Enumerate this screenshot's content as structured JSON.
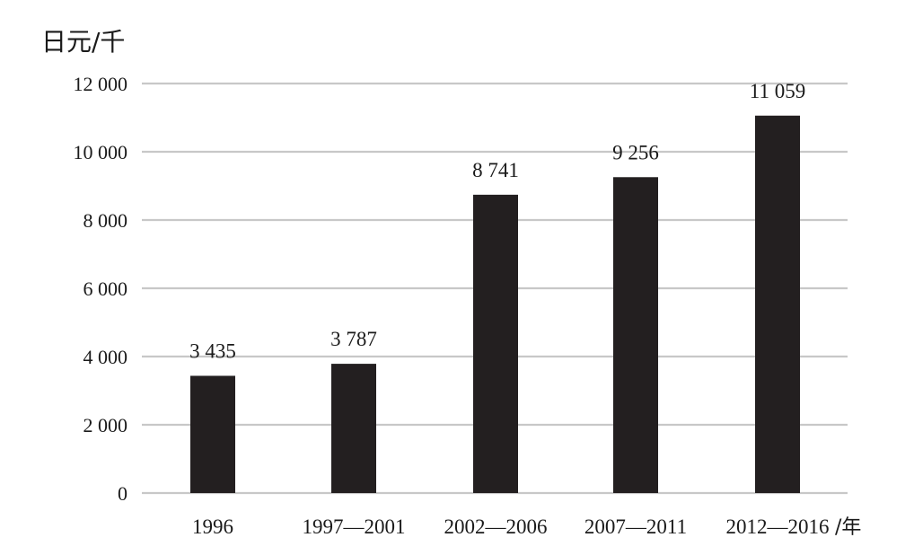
{
  "chart_data": {
    "type": "bar",
    "ylabel": "日元/千",
    "xlabel": "/年",
    "categories": [
      "1996",
      "1997—2001",
      "2002—2006",
      "2007—2011",
      "2012—2016"
    ],
    "values": [
      3435,
      3787,
      8741,
      9256,
      11059
    ],
    "value_labels": [
      "3 435",
      "3 787",
      "8 741",
      "9 256",
      "11 059"
    ],
    "yticks": [
      0,
      2000,
      4000,
      6000,
      8000,
      10000,
      12000
    ],
    "ytick_labels": [
      "0",
      "2 000",
      "4 000",
      "6 000",
      "8 000",
      "10 000",
      "12 000"
    ],
    "ylim": [
      0,
      12000
    ],
    "grid": true,
    "bar_color": "#231f20",
    "grid_color": "#c8c8c8"
  }
}
